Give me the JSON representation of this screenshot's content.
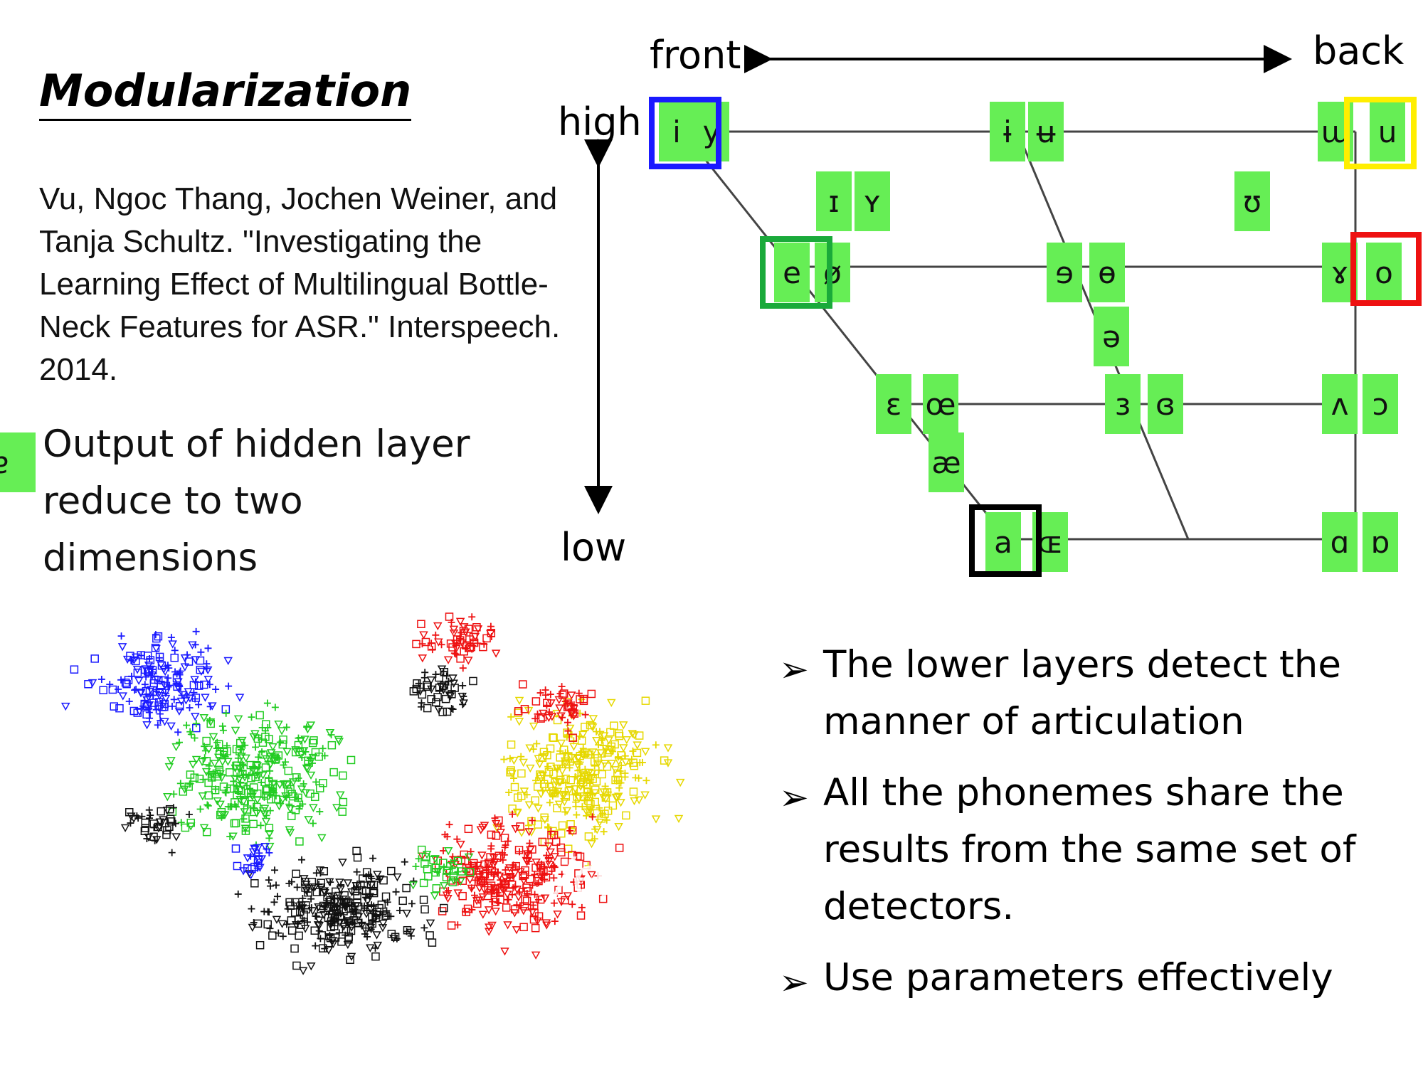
{
  "title": "Modularization",
  "citation": "Vu, Ngoc Thang, Jochen Weiner, and Tanja Schultz. \"Investigating the Learning Effect of Multilingual Bottle-Neck Features for ASR.\" Interspeech. 2014.",
  "caption": "Output of hidden layer reduce to two dimensions",
  "vowel_chart": {
    "front_label": "front",
    "back_label": "back",
    "high_label": "high",
    "low_label": "low",
    "cells": [
      {
        "ch": "i",
        "row": "close",
        "pos": "front-left"
      },
      {
        "ch": "y",
        "row": "close",
        "pos": "front-right"
      },
      {
        "ch": "ɨ",
        "row": "close",
        "pos": "central-left"
      },
      {
        "ch": "ʉ",
        "row": "close",
        "pos": "central-right"
      },
      {
        "ch": "ɯ",
        "row": "close",
        "pos": "back-left"
      },
      {
        "ch": "u",
        "row": "close",
        "pos": "back-right"
      },
      {
        "ch": "ɪ",
        "row": "near-close",
        "pos": "front-left"
      },
      {
        "ch": "ʏ",
        "row": "near-close",
        "pos": "front-right"
      },
      {
        "ch": "ʊ",
        "row": "near-close",
        "pos": "back"
      },
      {
        "ch": "e",
        "row": "close-mid",
        "pos": "front-left"
      },
      {
        "ch": "ø",
        "row": "close-mid",
        "pos": "front-right"
      },
      {
        "ch": "ɘ",
        "row": "close-mid",
        "pos": "central-left"
      },
      {
        "ch": "ɵ",
        "row": "close-mid",
        "pos": "central-right"
      },
      {
        "ch": "ɤ",
        "row": "close-mid",
        "pos": "back-left"
      },
      {
        "ch": "o",
        "row": "close-mid",
        "pos": "back-right"
      },
      {
        "ch": "ə",
        "row": "mid",
        "pos": "central"
      },
      {
        "ch": "ɛ",
        "row": "open-mid",
        "pos": "front-left"
      },
      {
        "ch": "œ",
        "row": "open-mid",
        "pos": "front-right"
      },
      {
        "ch": "ɜ",
        "row": "open-mid",
        "pos": "central-left"
      },
      {
        "ch": "ɞ",
        "row": "open-mid",
        "pos": "central-right"
      },
      {
        "ch": "ʌ",
        "row": "open-mid",
        "pos": "back-left"
      },
      {
        "ch": "ɔ",
        "row": "open-mid",
        "pos": "back-right"
      },
      {
        "ch": "æ",
        "row": "near-open",
        "pos": "front"
      },
      {
        "ch": "ɐ",
        "row": "near-open",
        "pos": "central"
      },
      {
        "ch": "a",
        "row": "open",
        "pos": "front-left"
      },
      {
        "ch": "ɶ",
        "row": "open",
        "pos": "front-right"
      },
      {
        "ch": "ɑ",
        "row": "open",
        "pos": "back-left"
      },
      {
        "ch": "ɒ",
        "row": "open",
        "pos": "back-right"
      }
    ],
    "highlights": [
      {
        "vowel": "i",
        "color": "#1a1aff"
      },
      {
        "vowel": "u",
        "color": "#ffee00"
      },
      {
        "vowel": "e",
        "color": "#1aaa3a"
      },
      {
        "vowel": "o",
        "color": "#ee1111"
      },
      {
        "vowel": "a",
        "color": "#000000"
      }
    ],
    "box_color": "#66ee55"
  },
  "scatter": {
    "overlay_label": "/e/",
    "series": [
      {
        "color": "#1a1aff",
        "vowel": "i"
      },
      {
        "color": "#22cc22",
        "vowel": "e"
      },
      {
        "color": "#e6d800",
        "vowel": "u"
      },
      {
        "color": "#ee1111",
        "vowel": "o"
      },
      {
        "color": "#111111",
        "vowel": "a"
      }
    ],
    "markers": [
      "square",
      "triangle",
      "plus"
    ]
  },
  "bullets": [
    "The lower layers detect the manner of articulation",
    "All the phonemes share the results from the same set of detectors.",
    "Use parameters effectively"
  ],
  "bullet_symbol": "➢"
}
